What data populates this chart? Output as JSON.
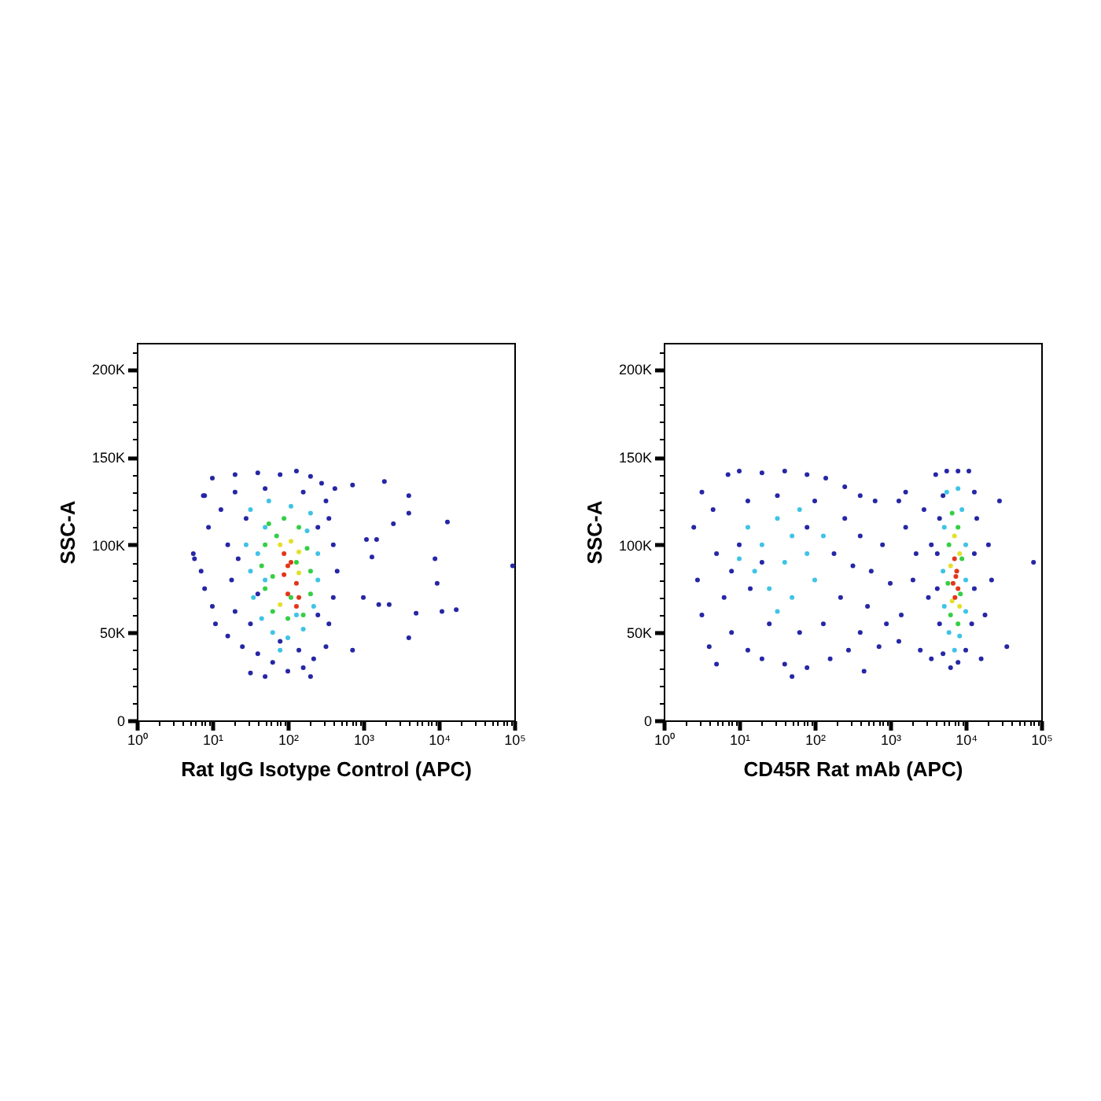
{
  "chart_data": [
    {
      "type": "scatter",
      "xlabel": "Rat IgG Isotype Control (APC)",
      "ylabel": "SSC-A",
      "log": "x",
      "grid": false,
      "legend": false,
      "marker": "circle",
      "xlim": [
        1,
        100000
      ],
      "ylim": [
        0,
        215000
      ],
      "xticks": [
        {
          "value": 1,
          "label": "10⁰"
        },
        {
          "value": 2,
          "label": null
        },
        {
          "value": 3,
          "label": null
        },
        {
          "value": 4,
          "label": null
        },
        {
          "value": 5,
          "label": null
        },
        {
          "value": 6,
          "label": null
        },
        {
          "value": 7,
          "label": null
        },
        {
          "value": 8,
          "label": null
        },
        {
          "value": 9,
          "label": null
        },
        {
          "value": 10,
          "label": "10¹"
        },
        {
          "value": 20,
          "label": null
        },
        {
          "value": 30,
          "label": null
        },
        {
          "value": 40,
          "label": null
        },
        {
          "value": 50,
          "label": null
        },
        {
          "value": 60,
          "label": null
        },
        {
          "value": 70,
          "label": null
        },
        {
          "value": 80,
          "label": null
        },
        {
          "value": 90,
          "label": null
        },
        {
          "value": 100,
          "label": "10²"
        },
        {
          "value": 200,
          "label": null
        },
        {
          "value": 300,
          "label": null
        },
        {
          "value": 400,
          "label": null
        },
        {
          "value": 500,
          "label": null
        },
        {
          "value": 600,
          "label": null
        },
        {
          "value": 700,
          "label": null
        },
        {
          "value": 800,
          "label": null
        },
        {
          "value": 900,
          "label": null
        },
        {
          "value": 1000,
          "label": "10³"
        },
        {
          "value": 2000,
          "label": null
        },
        {
          "value": 3000,
          "label": null
        },
        {
          "value": 4000,
          "label": null
        },
        {
          "value": 5000,
          "label": null
        },
        {
          "value": 6000,
          "label": null
        },
        {
          "value": 7000,
          "label": null
        },
        {
          "value": 8000,
          "label": null
        },
        {
          "value": 9000,
          "label": null
        },
        {
          "value": 10000,
          "label": "10⁴"
        },
        {
          "value": 20000,
          "label": null
        },
        {
          "value": 30000,
          "label": null
        },
        {
          "value": 40000,
          "label": null
        },
        {
          "value": 50000,
          "label": null
        },
        {
          "value": 60000,
          "label": null
        },
        {
          "value": 70000,
          "label": null
        },
        {
          "value": 80000,
          "label": null
        },
        {
          "value": 90000,
          "label": null
        },
        {
          "value": 100000,
          "label": "10⁵"
        }
      ],
      "yticks": [
        0,
        {
          "value": 10000,
          "label": null
        },
        {
          "value": 20000,
          "label": null
        },
        {
          "value": 30000,
          "label": null
        },
        {
          "value": 40000,
          "label": null
        },
        {
          "value": 50000,
          "label": "50K"
        },
        {
          "value": 60000,
          "label": null
        },
        {
          "value": 70000,
          "label": null
        },
        {
          "value": 80000,
          "label": null
        },
        {
          "value": 90000,
          "label": null
        },
        {
          "value": 100000,
          "label": "100K"
        },
        {
          "value": 110000,
          "label": null
        },
        {
          "value": 120000,
          "label": null
        },
        {
          "value": 130000,
          "label": null
        },
        {
          "value": 140000,
          "label": null
        },
        {
          "value": 150000,
          "label": "150K"
        },
        {
          "value": 160000,
          "label": null
        },
        {
          "value": 170000,
          "label": null
        },
        {
          "value": 180000,
          "label": null
        },
        {
          "value": 190000,
          "label": null
        },
        {
          "value": 200000,
          "label": "200K"
        },
        {
          "value": 210000,
          "label": null
        }
      ],
      "series": [
        {
          "color": "#2626a6",
          "x": [
            10,
            20,
            40,
            79,
            130,
            200,
            280,
            7.9,
            13,
            8.9,
            5.6,
            7.1,
            7.9,
            10,
            11,
            16,
            25,
            40,
            63,
            100,
            160,
            220,
            320,
            350,
            400,
            450,
            400,
            350,
            320,
            32,
            50,
            200,
            20,
            50,
            160,
            16,
            18,
            20,
            28,
            32,
            250,
            250,
            79,
            140,
            40,
            22,
            1900,
            4000,
            4000,
            13000,
            1100,
            1500,
            8900,
            9500,
            11000,
            17000,
            5000,
            4000,
            720,
            95000,
            720,
            420,
            2500,
            1300,
            1000,
            1600,
            2200,
            5.8,
            7.6
          ],
          "values": [
            138000,
            140000,
            141000,
            140000,
            142000,
            139000,
            135000,
            128000,
            120000,
            110000,
            95000,
            85000,
            75000,
            65000,
            55000,
            48000,
            42000,
            38000,
            33000,
            28000,
            30000,
            35000,
            42000,
            55000,
            70000,
            85000,
            100000,
            115000,
            125000,
            27000,
            25000,
            25000,
            130000,
            132000,
            130000,
            100000,
            80000,
            62000,
            115000,
            55000,
            60000,
            110000,
            45000,
            40000,
            72000,
            92000,
            136000,
            128000,
            118000,
            113000,
            103000,
            103000,
            92000,
            78000,
            62000,
            63000,
            61000,
            47000,
            40000,
            88000,
            134000,
            132000,
            112000,
            93000,
            70000,
            66000,
            66000,
            92000,
            128000
          ]
        },
        {
          "color": "#3fc3e6",
          "x": [
            32,
            56,
            110,
            200,
            28,
            32,
            35,
            45,
            63,
            100,
            160,
            220,
            250,
            250,
            50,
            180,
            40,
            79,
            130,
            50
          ],
          "values": [
            120000,
            125000,
            122000,
            118000,
            100000,
            85000,
            70000,
            58000,
            50000,
            47000,
            52000,
            65000,
            80000,
            95000,
            110000,
            108000,
            95000,
            40000,
            60000,
            80000
          ]
        },
        {
          "color": "#35cf45",
          "x": [
            56,
            89,
            140,
            50,
            180,
            45,
            200,
            50,
            200,
            63,
            160,
            100,
            71,
            130,
            63,
            110
          ],
          "values": [
            112000,
            115000,
            110000,
            100000,
            98000,
            88000,
            85000,
            75000,
            72000,
            62000,
            60000,
            58000,
            105000,
            90000,
            82000,
            70000
          ]
        },
        {
          "color": "#e3e02c",
          "x": [
            79,
            140,
            140,
            79,
            110
          ],
          "values": [
            100000,
            96000,
            84000,
            66000,
            102000
          ]
        },
        {
          "color": "#e2361a",
          "x": [
            89,
            110,
            89,
            130,
            100,
            130,
            100,
            140
          ],
          "values": [
            95000,
            90000,
            83000,
            78000,
            72000,
            65000,
            88000,
            70000
          ]
        }
      ]
    },
    {
      "type": "scatter",
      "xlabel": "CD45R Rat mAb (APC)",
      "ylabel": "SSC-A",
      "log": "x",
      "grid": false,
      "legend": false,
      "marker": "circle",
      "xlim": [
        1,
        100000
      ],
      "ylim": [
        0,
        215000
      ],
      "xticks": [
        {
          "value": 1,
          "label": "10⁰"
        },
        {
          "value": 2,
          "label": null
        },
        {
          "value": 3,
          "label": null
        },
        {
          "value": 4,
          "label": null
        },
        {
          "value": 5,
          "label": null
        },
        {
          "value": 6,
          "label": null
        },
        {
          "value": 7,
          "label": null
        },
        {
          "value": 8,
          "label": null
        },
        {
          "value": 9,
          "label": null
        },
        {
          "value": 10,
          "label": "10¹"
        },
        {
          "value": 20,
          "label": null
        },
        {
          "value": 30,
          "label": null
        },
        {
          "value": 40,
          "label": null
        },
        {
          "value": 50,
          "label": null
        },
        {
          "value": 60,
          "label": null
        },
        {
          "value": 70,
          "label": null
        },
        {
          "value": 80,
          "label": null
        },
        {
          "value": 90,
          "label": null
        },
        {
          "value": 100,
          "label": "10²"
        },
        {
          "value": 200,
          "label": null
        },
        {
          "value": 300,
          "label": null
        },
        {
          "value": 400,
          "label": null
        },
        {
          "value": 500,
          "label": null
        },
        {
          "value": 600,
          "label": null
        },
        {
          "value": 700,
          "label": null
        },
        {
          "value": 800,
          "label": null
        },
        {
          "value": 900,
          "label": null
        },
        {
          "value": 1000,
          "label": "10³"
        },
        {
          "value": 2000,
          "label": null
        },
        {
          "value": 3000,
          "label": null
        },
        {
          "value": 4000,
          "label": null
        },
        {
          "value": 5000,
          "label": null
        },
        {
          "value": 6000,
          "label": null
        },
        {
          "value": 7000,
          "label": null
        },
        {
          "value": 8000,
          "label": null
        },
        {
          "value": 9000,
          "label": null
        },
        {
          "value": 10000,
          "label": "10⁴"
        },
        {
          "value": 20000,
          "label": null
        },
        {
          "value": 30000,
          "label": null
        },
        {
          "value": 40000,
          "label": null
        },
        {
          "value": 50000,
          "label": null
        },
        {
          "value": 60000,
          "label": null
        },
        {
          "value": 70000,
          "label": null
        },
        {
          "value": 80000,
          "label": null
        },
        {
          "value": 90000,
          "label": null
        },
        {
          "value": 100000,
          "label": "10⁵"
        }
      ],
      "yticks": [
        0,
        {
          "value": 10000,
          "label": null
        },
        {
          "value": 20000,
          "label": null
        },
        {
          "value": 30000,
          "label": null
        },
        {
          "value": 40000,
          "label": null
        },
        {
          "value": 50000,
          "label": "50K"
        },
        {
          "value": 60000,
          "label": null
        },
        {
          "value": 70000,
          "label": null
        },
        {
          "value": 80000,
          "label": null
        },
        {
          "value": 90000,
          "label": null
        },
        {
          "value": 100000,
          "label": "100K"
        },
        {
          "value": 110000,
          "label": null
        },
        {
          "value": 120000,
          "label": null
        },
        {
          "value": 130000,
          "label": null
        },
        {
          "value": 140000,
          "label": null
        },
        {
          "value": 150000,
          "label": "150K"
        },
        {
          "value": 160000,
          "label": null
        },
        {
          "value": 170000,
          "label": null
        },
        {
          "value": 180000,
          "label": null
        },
        {
          "value": 190000,
          "label": null
        },
        {
          "value": 200000,
          "label": "200K"
        },
        {
          "value": 210000,
          "label": null
        }
      ],
      "series": [
        {
          "color": "#2626a6",
          "x": [
            2.5,
            3.2,
            2.8,
            3.2,
            4.0,
            5.0,
            7.1,
            10,
            20,
            40,
            79,
            140,
            250,
            400,
            630,
            5.0,
            4.5,
            6.3,
            7.9,
            13,
            20,
            40,
            79,
            160,
            280,
            400,
            500,
            560,
            400,
            790,
            1000,
            890,
            320,
            220,
            250,
            13,
            32,
            100,
            10,
            14,
            25,
            63,
            130,
            180,
            50,
            450,
            20,
            79,
            7.9,
            1300,
            1600,
            2200,
            2000,
            1400,
            2500,
            3200,
            2800,
            1600,
            1300,
            710,
            3500,
            4000,
            5600,
            7900,
            11000,
            13000,
            14000,
            13000,
            13000,
            12000,
            10000,
            7900,
            6300,
            5000,
            4500,
            4200,
            4200,
            4500,
            5000,
            20000,
            22000,
            35000,
            28000,
            18000,
            79000,
            16000,
            3500
          ],
          "values": [
            110000,
            130000,
            80000,
            60000,
            42000,
            32000,
            140000,
            142000,
            141000,
            142000,
            140000,
            138000,
            133000,
            128000,
            125000,
            95000,
            120000,
            70000,
            50000,
            40000,
            35000,
            32000,
            30000,
            35000,
            40000,
            50000,
            65000,
            85000,
            105000,
            100000,
            78000,
            55000,
            88000,
            70000,
            115000,
            125000,
            128000,
            125000,
            100000,
            75000,
            55000,
            50000,
            55000,
            95000,
            25000,
            28000,
            90000,
            110000,
            85000,
            125000,
            110000,
            95000,
            80000,
            60000,
            40000,
            70000,
            120000,
            130000,
            45000,
            42000,
            100000,
            140000,
            142000,
            142000,
            142000,
            130000,
            115000,
            95000,
            75000,
            55000,
            40000,
            33000,
            30000,
            38000,
            55000,
            75000,
            95000,
            115000,
            128000,
            100000,
            80000,
            42000,
            125000,
            60000,
            90000,
            35000,
            35000
          ]
        },
        {
          "color": "#3fc3e6",
          "x": [
            13,
            20,
            32,
            50,
            79,
            40,
            16,
            25,
            50,
            100,
            32,
            63,
            130,
            10,
            5600,
            7900,
            8900,
            5200,
            10000,
            5000,
            10000,
            5200,
            10000,
            6000,
            8300,
            7100
          ],
          "values": [
            110000,
            100000,
            115000,
            105000,
            95000,
            90000,
            85000,
            75000,
            70000,
            80000,
            62000,
            120000,
            105000,
            92000,
            130000,
            132000,
            120000,
            110000,
            100000,
            85000,
            80000,
            65000,
            62000,
            50000,
            48000,
            40000
          ]
        },
        {
          "color": "#35cf45",
          "x": [
            6600,
            7900,
            6000,
            8900,
            5800,
            8500,
            6300,
            7900
          ],
          "values": [
            118000,
            110000,
            100000,
            92000,
            78000,
            72000,
            60000,
            55000
          ]
        },
        {
          "color": "#e3e02c",
          "x": [
            7100,
            8300,
            6300,
            8300,
            6600
          ],
          "values": [
            105000,
            95000,
            88000,
            65000,
            68000
          ]
        },
        {
          "color": "#e2361a",
          "x": [
            7100,
            7600,
            6800,
            7900,
            7200,
            7400
          ],
          "values": [
            92000,
            85000,
            78000,
            75000,
            70000,
            82000
          ]
        }
      ]
    }
  ]
}
